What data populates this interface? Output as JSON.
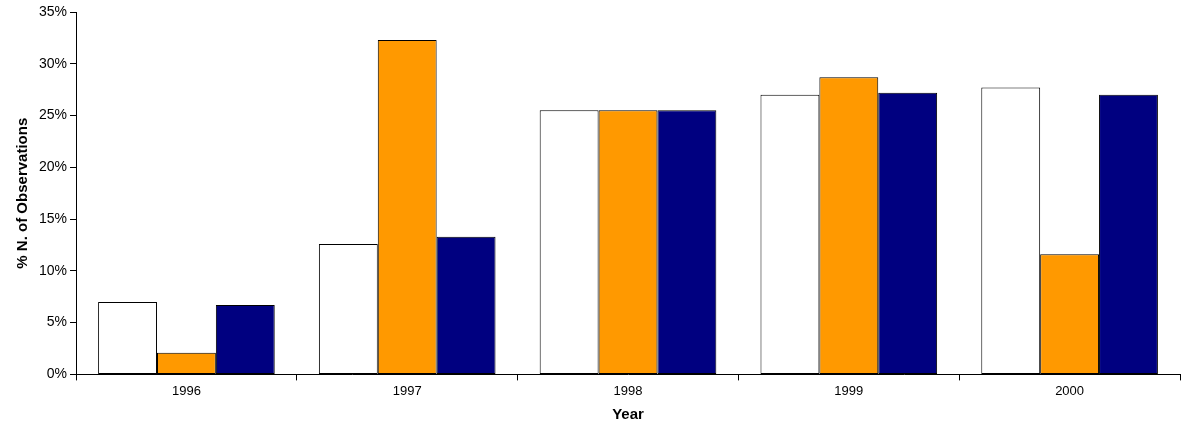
{
  "chart_data": {
    "type": "bar",
    "x_label": "Year",
    "y_label": "% N. of Observations",
    "categories": [
      "1996",
      "1997",
      "1998",
      "1999",
      "2000"
    ],
    "series": [
      {
        "color": "#ffffff",
        "values": [
          7.0,
          12.6,
          25.5,
          27.0,
          27.7
        ]
      },
      {
        "color": "#ff9900",
        "values": [
          2.1,
          32.3,
          25.5,
          28.7,
          11.6
        ]
      },
      {
        "color": "#000080",
        "values": [
          6.7,
          13.3,
          25.5,
          27.2,
          27.0
        ]
      }
    ],
    "ylim": [
      0,
      35
    ],
    "yticks": [
      {
        "value": 0,
        "label": "0%"
      },
      {
        "value": 5,
        "label": "5%"
      },
      {
        "value": 10,
        "label": "10%"
      },
      {
        "value": 15,
        "label": "15%"
      },
      {
        "value": 20,
        "label": "20%"
      },
      {
        "value": 25,
        "label": "25%"
      },
      {
        "value": 30,
        "label": "30%"
      },
      {
        "value": 35,
        "label": "35%"
      }
    ],
    "grid": false
  }
}
